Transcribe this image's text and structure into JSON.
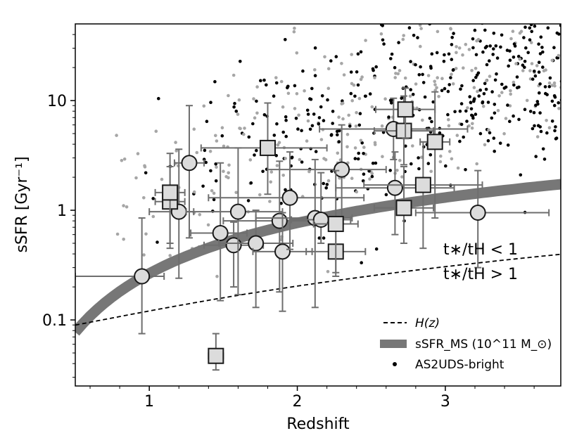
{
  "chart_data": {
    "type": "scatter",
    "xlabel": "Redshift",
    "ylabel": "sSFR [Gyr⁻¹]",
    "x_scale": "linear",
    "y_scale": "log",
    "xlim": [
      0.5,
      3.78
    ],
    "ylim": [
      0.025,
      50
    ],
    "x_ticks": [
      {
        "value": 1,
        "label": "1"
      },
      {
        "value": 2,
        "label": "2"
      },
      {
        "value": 3,
        "label": "3"
      }
    ],
    "y_ticks": [
      {
        "value": 0.1,
        "label": "0.1"
      },
      {
        "value": 1,
        "label": "1"
      },
      {
        "value": 10,
        "label": "10"
      }
    ],
    "legend": {
      "placement": "lower-right",
      "entries": [
        {
          "key": "hz",
          "label": "H(z)",
          "style": "dashed-line"
        },
        {
          "key": "ms",
          "label": "sSFR_MS (10^11 M_⊙)",
          "style": "thick-grey-band"
        },
        {
          "key": "bright",
          "label": "AS2UDS-bright",
          "style": "black-dot"
        }
      ]
    },
    "region_labels": {
      "upper": "t∗/tH < 1",
      "lower": "t∗/tH > 1"
    },
    "colors": {
      "errorbar": "#6e6e6e",
      "marker_fill": "#dcdcdc",
      "marker_edge": "#1a1a1a",
      "ms_band": "#777777",
      "bg_dot_light": "#a6a6a6",
      "bg_dot_dark": "#000000"
    },
    "series": [
      {
        "marker": "circle",
        "points": [
          {
            "x": 0.95,
            "y": 0.25,
            "xerr": [
              0.45,
              0.15
            ],
            "yerr": [
              0.075,
              0.85
            ]
          },
          {
            "x": 1.2,
            "y": 0.97,
            "xerr": [
              0.2,
              0.1
            ],
            "yerr": [
              0.24,
              3.6
            ]
          },
          {
            "x": 1.27,
            "y": 2.7,
            "xerr": [
              0.1,
              0.1
            ],
            "yerr": [
              0.56,
              9.0
            ]
          },
          {
            "x": 1.48,
            "y": 0.62,
            "xerr": [
              0.2,
              0.18
            ],
            "yerr": [
              0.15,
              2.7
            ]
          },
          {
            "x": 1.57,
            "y": 0.48,
            "xerr": [
              0.2,
              0.2
            ],
            "yerr": [
              0.2,
              0.78
            ]
          },
          {
            "x": 1.6,
            "y": 0.97,
            "xerr": [
              0.35,
              0.3
            ],
            "yerr": [
              0.17,
              3.7
            ]
          },
          {
            "x": 1.72,
            "y": 0.5,
            "xerr": [
              0.25,
              0.25
            ],
            "yerr": [
              0.13,
              1.0
            ]
          },
          {
            "x": 1.88,
            "y": 0.8,
            "xerr": [
              0.38,
              0.2
            ],
            "yerr": [
              0.18,
              2.8
            ]
          },
          {
            "x": 1.9,
            "y": 0.42,
            "xerr": [
              0.2,
              0.2
            ],
            "yerr": [
              0.12,
              0.95
            ]
          },
          {
            "x": 1.95,
            "y": 1.3,
            "xerr": [
              0.55,
              0.5
            ],
            "yerr": [
              0.44,
              3.4
            ]
          },
          {
            "x": 2.12,
            "y": 0.85,
            "xerr": [
              0.4,
              0.25
            ],
            "yerr": [
              0.13,
              2.9
            ]
          },
          {
            "x": 2.16,
            "y": 0.82,
            "xerr": [
              0.2,
              0.2
            ],
            "yerr": [
              0.5,
              2.2
            ]
          },
          {
            "x": 2.3,
            "y": 2.35,
            "xerr": [
              0.5,
              0.3
            ],
            "yerr": [
              0.85,
              6.0
            ]
          },
          {
            "x": 2.65,
            "y": 5.5,
            "xerr": [
              0.5,
              0.5
            ],
            "yerr": [
              2.9,
              10.5
            ]
          },
          {
            "x": 2.66,
            "y": 1.6,
            "xerr": [
              0.4,
              0.4
            ],
            "yerr": [
              0.6,
              3.4
            ]
          },
          {
            "x": 3.22,
            "y": 0.95,
            "xerr": [
              0.42,
              0.48
            ],
            "yerr": [
              0.3,
              2.3
            ]
          }
        ]
      },
      {
        "marker": "square",
        "points": [
          {
            "x": 1.14,
            "y": 1.2,
            "xerr": [
              0.1,
              0.1
            ],
            "yerr": [
              0.45,
              2.5
            ]
          },
          {
            "x": 1.14,
            "y": 1.45,
            "xerr": [
              0.1,
              0.1
            ],
            "yerr": [
              0.5,
              3.3
            ]
          },
          {
            "x": 1.45,
            "y": 0.047,
            "xerr": [
              0.05,
              0.05
            ],
            "yerr": [
              0.035,
              0.075
            ]
          },
          {
            "x": 1.8,
            "y": 3.7,
            "xerr": [
              0.45,
              0.4
            ],
            "yerr": [
              1.4,
              9.5
            ]
          },
          {
            "x": 2.26,
            "y": 0.42,
            "xerr": [
              0.2,
              0.2
            ],
            "yerr": [
              0.25,
              0.75
            ]
          },
          {
            "x": 2.26,
            "y": 0.75,
            "xerr": [
              0.15,
              0.15
            ],
            "yerr": [
              0.27,
              2.3
            ]
          },
          {
            "x": 2.72,
            "y": 1.05,
            "xerr": [
              0.2,
              0.2
            ],
            "yerr": [
              0.5,
              2.5
            ]
          },
          {
            "x": 2.72,
            "y": 5.3,
            "xerr": [
              0.2,
              0.2
            ],
            "yerr": [
              2.6,
              11
            ]
          },
          {
            "x": 2.73,
            "y": 8.3,
            "xerr": [
              0.2,
              0.2
            ],
            "yerr": [
              4.5,
              13
            ]
          },
          {
            "x": 2.85,
            "y": 1.7,
            "xerr": [
              0.4,
              0.4
            ],
            "yerr": [
              0.45,
              4.2
            ]
          },
          {
            "x": 2.93,
            "y": 4.2,
            "xerr": [
              0.1,
              0.1
            ],
            "yerr": [
              0.85,
              12
            ]
          }
        ]
      }
    ]
  }
}
